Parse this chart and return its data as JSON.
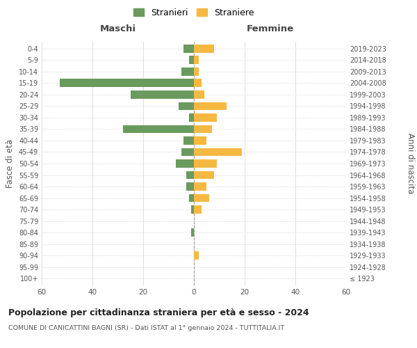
{
  "age_groups": [
    "100+",
    "95-99",
    "90-94",
    "85-89",
    "80-84",
    "75-79",
    "70-74",
    "65-69",
    "60-64",
    "55-59",
    "50-54",
    "45-49",
    "40-44",
    "35-39",
    "30-34",
    "25-29",
    "20-24",
    "15-19",
    "10-14",
    "5-9",
    "0-4"
  ],
  "birth_years": [
    "≤ 1923",
    "1924-1928",
    "1929-1933",
    "1934-1938",
    "1939-1943",
    "1944-1948",
    "1949-1953",
    "1954-1958",
    "1959-1963",
    "1964-1968",
    "1969-1973",
    "1974-1978",
    "1979-1983",
    "1984-1988",
    "1989-1993",
    "1994-1998",
    "1999-2003",
    "2004-2008",
    "2009-2013",
    "2014-2018",
    "2019-2023"
  ],
  "males": [
    0,
    0,
    0,
    0,
    1,
    0,
    1,
    2,
    3,
    3,
    7,
    5,
    4,
    28,
    2,
    6,
    25,
    53,
    5,
    2,
    4
  ],
  "females": [
    0,
    0,
    2,
    0,
    0,
    0,
    3,
    6,
    5,
    8,
    9,
    19,
    5,
    7,
    9,
    13,
    4,
    3,
    2,
    2,
    8
  ],
  "male_color": "#6b9a5e",
  "female_color": "#f5b942",
  "xlim": 60,
  "title": "Popolazione per cittadinanza straniera per età e sesso - 2024",
  "subtitle": "COMUNE DI CANICATTINI BAGNI (SR) - Dati ISTAT al 1° gennaio 2024 - TUTTITALIA.IT",
  "ylabel_left": "Fasce di età",
  "ylabel_right": "Anni di nascita",
  "xlabel_left": "Maschi",
  "xlabel_right": "Femmine",
  "legend_male": "Stranieri",
  "legend_female": "Straniere",
  "background_color": "#ffffff",
  "grid_color": "#dddddd"
}
